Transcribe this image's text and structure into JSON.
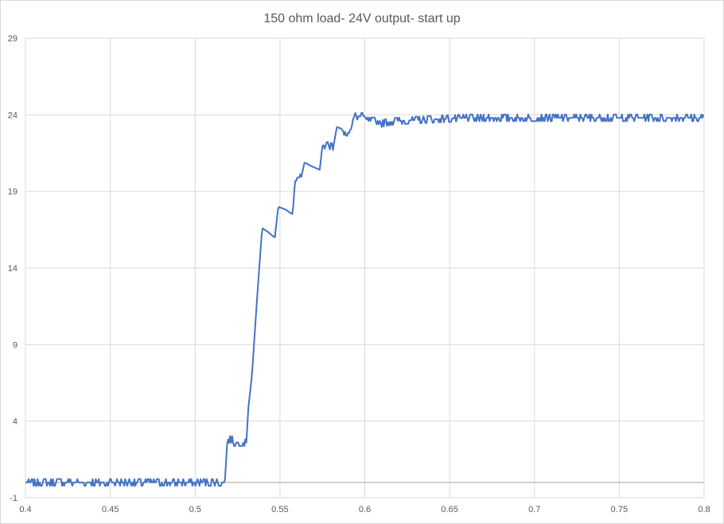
{
  "chart_data": {
    "type": "line",
    "title": "150 ohm load- 24V output- start up",
    "xlabel": "",
    "ylabel": "",
    "xlim": [
      0.4,
      0.8
    ],
    "ylim": [
      -1,
      29
    ],
    "x_ticks": [
      0.4,
      0.45,
      0.5,
      0.55,
      0.6,
      0.65,
      0.7,
      0.75,
      0.8
    ],
    "x_tick_labels": [
      "0.4",
      "0.45",
      "0.5",
      "0.55",
      "0.6",
      "0.65",
      "0.7",
      "0.75",
      "0.8"
    ],
    "y_ticks": [
      -1,
      4,
      9,
      14,
      19,
      24,
      29
    ],
    "y_tick_labels": [
      "-1",
      "4",
      "9",
      "14",
      "19",
      "24",
      "29"
    ],
    "grid": true,
    "legend": "none",
    "series": [
      {
        "color": "#4472c4",
        "points": [
          [
            0.4,
            0.0
          ],
          [
            0.5175,
            0.0
          ],
          [
            0.519,
            2.8
          ],
          [
            0.5225,
            2.8
          ],
          [
            0.5226,
            2.6
          ],
          [
            0.5305,
            2.6
          ],
          [
            0.531,
            4.5
          ],
          [
            0.5335,
            7.0
          ],
          [
            0.5365,
            12.0
          ],
          [
            0.5395,
            16.6
          ],
          [
            0.541,
            16.5
          ],
          [
            0.5435,
            16.3
          ],
          [
            0.5455,
            16.1
          ],
          [
            0.547,
            16.0
          ],
          [
            0.5475,
            16.5
          ],
          [
            0.549,
            18.0
          ],
          [
            0.5535,
            17.8
          ],
          [
            0.556,
            17.6
          ],
          [
            0.5575,
            17.5
          ],
          [
            0.559,
            19.9
          ],
          [
            0.5625,
            19.9
          ],
          [
            0.5645,
            20.9
          ],
          [
            0.5675,
            20.7
          ],
          [
            0.5715,
            20.5
          ],
          [
            0.5735,
            20.4
          ],
          [
            0.575,
            22.0
          ],
          [
            0.578,
            22.0
          ],
          [
            0.5815,
            21.9
          ],
          [
            0.5835,
            23.2
          ],
          [
            0.586,
            23.1
          ],
          [
            0.5875,
            22.9
          ],
          [
            0.5915,
            22.8
          ],
          [
            0.5935,
            23.9
          ],
          [
            0.6,
            23.9
          ],
          [
            0.6015,
            23.6
          ],
          [
            0.609,
            23.6
          ],
          [
            0.6095,
            23.4
          ],
          [
            0.6125,
            23.5
          ],
          [
            0.62,
            23.6
          ],
          [
            0.64,
            23.7
          ],
          [
            0.66,
            23.8
          ],
          [
            0.68,
            23.8
          ],
          [
            0.7,
            23.8
          ],
          [
            0.72,
            23.8
          ],
          [
            0.74,
            23.8
          ],
          [
            0.76,
            23.8
          ],
          [
            0.78,
            23.8
          ],
          [
            0.8,
            23.8
          ]
        ]
      }
    ]
  }
}
